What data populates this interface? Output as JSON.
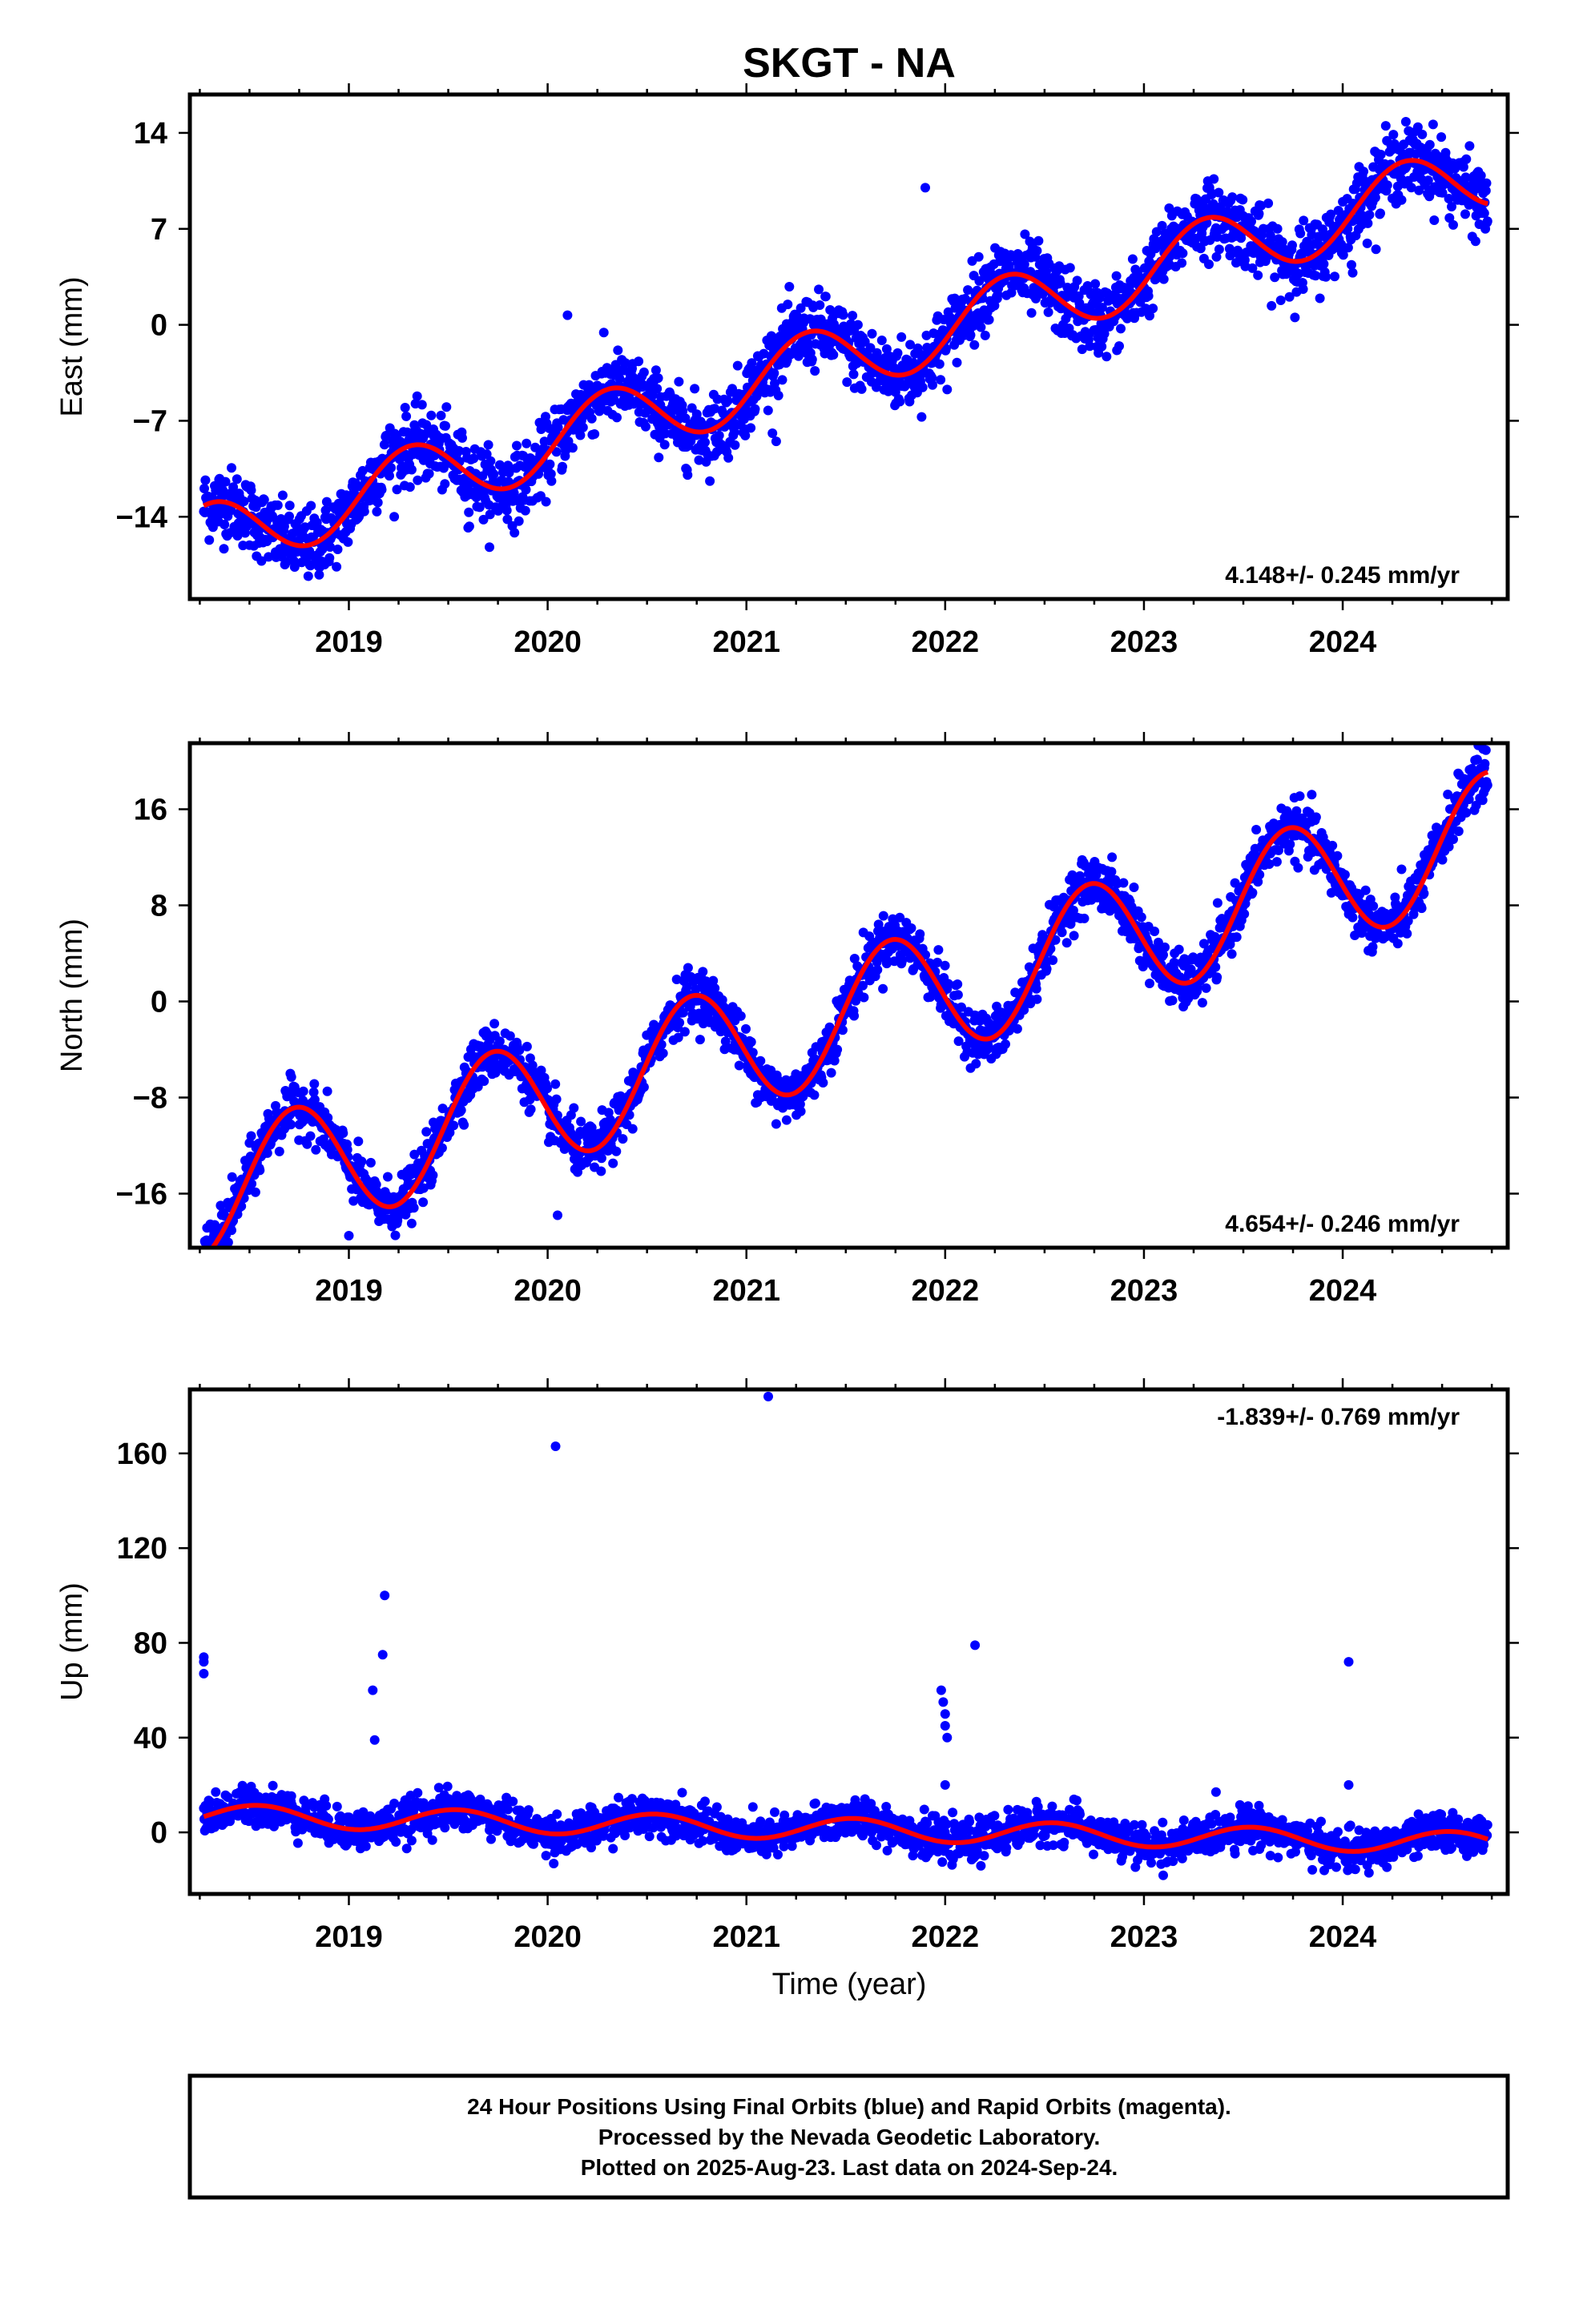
{
  "title": "SKGT - NA",
  "xlabel": "Time (year)",
  "x_ticks": [
    "2019",
    "2020",
    "2021",
    "2022",
    "2023",
    "2024"
  ],
  "colors": {
    "final_orbits": "#0000ff",
    "model": "#ff0000",
    "frame": "#000000"
  },
  "footer": {
    "line1": "24 Hour Positions Using Final Orbits (blue) and Rapid Orbits (magenta).",
    "line2": "Processed by the Nevada Geodetic Laboratory.",
    "line3": "Plotted on 2025-Aug-23. Last data on 2024-Sep-24."
  },
  "chart_data": [
    {
      "type": "scatter",
      "ylabel": "East (mm)",
      "ylim": [
        -20,
        16.8
      ],
      "yticks": [
        14,
        7,
        0,
        -7,
        -14
      ],
      "yticklabels": [
        "14",
        "7",
        "0",
        "−7",
        "−14"
      ],
      "xlim": [
        2018.2,
        2024.83
      ],
      "rate": "4.148+/- 0.245 mm/yr",
      "rate_position": "bottom-right",
      "model": {
        "slope": 4.148,
        "t0": 2021.5,
        "offset": -2.3,
        "amp_c": -0.9,
        "amp_s": 2.4
      },
      "noise": 1.3,
      "outliers": [
        [
          2019.6,
          -14.8
        ],
        [
          2020.1,
          0.7
        ],
        [
          2021.15,
          -8.5
        ],
        [
          2021.9,
          10.0
        ],
        [
          2024.05,
          3.8
        ]
      ]
    },
    {
      "type": "scatter",
      "ylabel": "North (mm)",
      "ylim": [
        -20.5,
        21.5
      ],
      "yticks": [
        16,
        8,
        0,
        -8,
        -16
      ],
      "yticklabels": [
        "16",
        "8",
        "0",
        "−8",
        "−16"
      ],
      "xlim": [
        2018.2,
        2024.83
      ],
      "rate": "4.654+/- 0.246 mm/yr",
      "rate_position": "bottom-right",
      "model": {
        "slope": 4.654,
        "t0": 2021.5,
        "offset": -1.2,
        "amp_c": -0.8,
        "amp_s": -5.2
      },
      "noise": 1.1,
      "outliers": [
        [
          2019.0,
          -19.5
        ],
        [
          2020.05,
          -17.8
        ],
        [
          2021.15,
          -10.2
        ],
        [
          2022.95,
          9.5
        ]
      ]
    },
    {
      "type": "scatter",
      "ylabel": "Up (mm)",
      "ylim": [
        -26,
        187
      ],
      "yticks": [
        160,
        120,
        80,
        40,
        0
      ],
      "yticklabels": [
        "160",
        "120",
        "80",
        "40",
        "0"
      ],
      "xlim": [
        2018.2,
        2024.83
      ],
      "rate": "-1.839+/- 0.769 mm/yr",
      "rate_position": "top-right",
      "model": {
        "slope": -1.839,
        "t0": 2021.5,
        "offset": 1.3,
        "amp_c": -4.5,
        "amp_s": -1.2
      },
      "noise": 4.0,
      "outliers": [
        [
          2018.27,
          74
        ],
        [
          2018.27,
          72
        ],
        [
          2018.27,
          67
        ],
        [
          2019.12,
          60
        ],
        [
          2019.13,
          39
        ],
        [
          2019.18,
          100
        ],
        [
          2019.17,
          75
        ],
        [
          2020.04,
          163
        ],
        [
          2021.11,
          184
        ],
        [
          2021.98,
          60
        ],
        [
          2021.99,
          55
        ],
        [
          2022.0,
          50
        ],
        [
          2022.0,
          45
        ],
        [
          2022.01,
          40
        ],
        [
          2022.0,
          20
        ],
        [
          2022.15,
          79
        ],
        [
          2024.03,
          72
        ],
        [
          2024.03,
          20
        ]
      ]
    }
  ]
}
